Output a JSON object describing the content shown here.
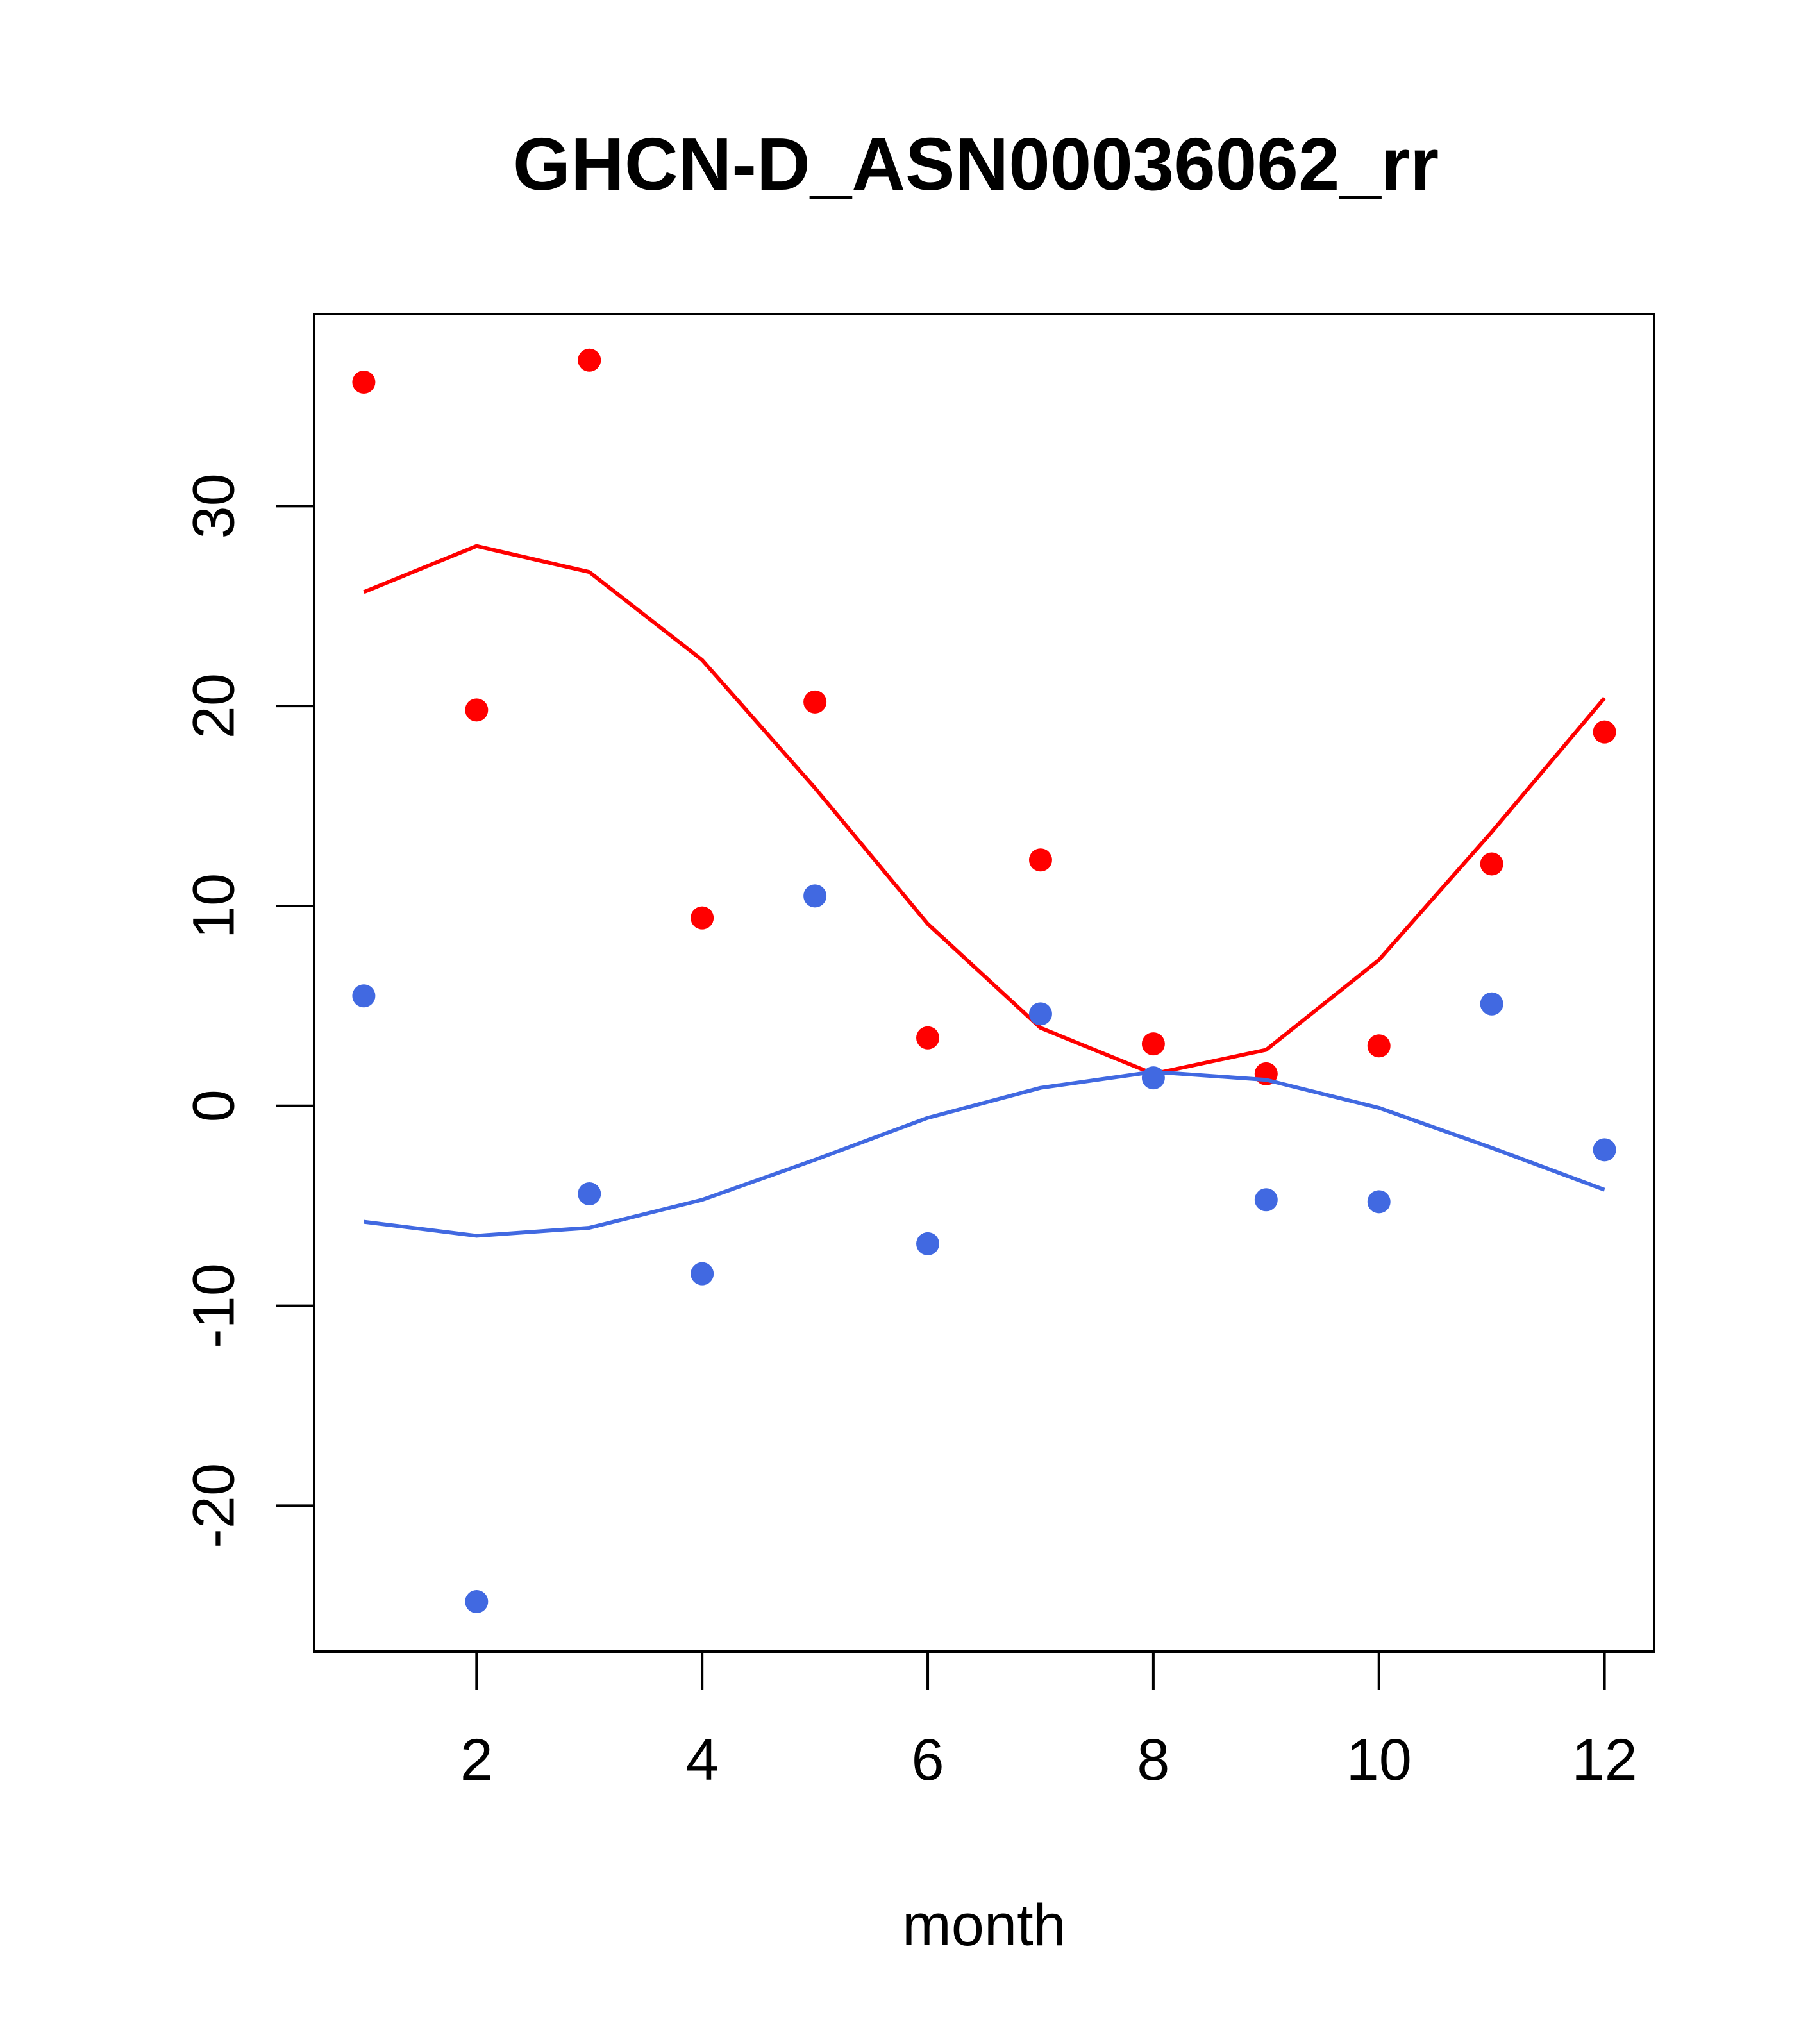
{
  "chart_data": {
    "type": "scatter",
    "title": "GHCN-D_ASN00036062_rr",
    "xlabel": "month",
    "ylabel": "",
    "xlim": [
      0.56,
      12.44
    ],
    "ylim": [
      -27.3,
      39.6
    ],
    "xticks": [
      2,
      4,
      6,
      8,
      10,
      12
    ],
    "yticks": [
      -20,
      -10,
      0,
      10,
      20,
      30
    ],
    "grid": false,
    "colors": {
      "red": "#ff0000",
      "blue": "#4169e1"
    },
    "series": [
      {
        "color": "#ff0000",
        "points": [
          {
            "x": 1,
            "y": 36.2
          },
          {
            "x": 2,
            "y": 19.8
          },
          {
            "x": 3,
            "y": 37.3
          },
          {
            "x": 4,
            "y": 9.4
          },
          {
            "x": 5,
            "y": 20.2
          },
          {
            "x": 6,
            "y": 3.4
          },
          {
            "x": 7,
            "y": 12.3
          },
          {
            "x": 8,
            "y": 3.1
          },
          {
            "x": 9,
            "y": 1.6
          },
          {
            "x": 10,
            "y": 3.0
          },
          {
            "x": 11,
            "y": 12.1
          },
          {
            "x": 12,
            "y": 18.7
          }
        ],
        "line": [
          {
            "x": 1,
            "y": 25.7
          },
          {
            "x": 2,
            "y": 28.0
          },
          {
            "x": 3,
            "y": 26.7
          },
          {
            "x": 4,
            "y": 22.3
          },
          {
            "x": 5,
            "y": 15.9
          },
          {
            "x": 6,
            "y": 9.1
          },
          {
            "x": 7,
            "y": 3.9
          },
          {
            "x": 8,
            "y": 1.6
          },
          {
            "x": 9,
            "y": 2.8
          },
          {
            "x": 10,
            "y": 7.3
          },
          {
            "x": 11,
            "y": 13.7
          },
          {
            "x": 12,
            "y": 20.4
          }
        ]
      },
      {
        "color": "#4169e1",
        "points": [
          {
            "x": 1,
            "y": 5.5
          },
          {
            "x": 2,
            "y": -24.8
          },
          {
            "x": 3,
            "y": -4.4
          },
          {
            "x": 4,
            "y": -8.4
          },
          {
            "x": 5,
            "y": 10.5
          },
          {
            "x": 6,
            "y": -6.9
          },
          {
            "x": 7,
            "y": 4.6
          },
          {
            "x": 8,
            "y": 1.4
          },
          {
            "x": 9,
            "y": -4.7
          },
          {
            "x": 10,
            "y": -4.8
          },
          {
            "x": 11,
            "y": 5.1
          },
          {
            "x": 12,
            "y": -2.2
          }
        ],
        "line": [
          {
            "x": 1,
            "y": -5.8
          },
          {
            "x": 2,
            "y": -6.5
          },
          {
            "x": 3,
            "y": -6.1
          },
          {
            "x": 4,
            "y": -4.7
          },
          {
            "x": 5,
            "y": -2.7
          },
          {
            "x": 6,
            "y": -0.6
          },
          {
            "x": 7,
            "y": 0.9
          },
          {
            "x": 8,
            "y": 1.7
          },
          {
            "x": 9,
            "y": 1.3
          },
          {
            "x": 10,
            "y": -0.1
          },
          {
            "x": 11,
            "y": -2.1
          },
          {
            "x": 12,
            "y": -4.2
          }
        ]
      }
    ]
  }
}
